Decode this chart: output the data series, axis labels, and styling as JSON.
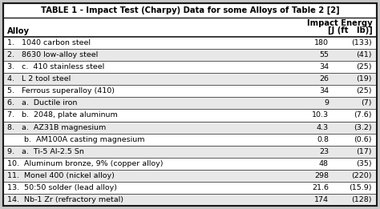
{
  "title": "TABLE 1 - Impact Test (Charpy) Data for some Alloys of Table 2 [2]",
  "col_header_left": "Alloy",
  "col_header_right_line1": "Impact Energy",
  "col_header_right_line2": "[J (ft   lb)]",
  "rows": [
    {
      "label": "1.   1040 carbon steel",
      "j_val": "180",
      "ft_val": "(133)"
    },
    {
      "label": "2.   8630 low-alloy steel",
      "j_val": "55",
      "ft_val": "(41)"
    },
    {
      "label": "3.   c.  410 stainless steel",
      "j_val": "34",
      "ft_val": "(25)"
    },
    {
      "label": "4.   L 2 tool steel",
      "j_val": "26",
      "ft_val": "(19)"
    },
    {
      "label": "5.   Ferrous superalloy (410)",
      "j_val": "34",
      "ft_val": "(25)"
    },
    {
      "label": "6.   a.  Ductile iron",
      "j_val": "9",
      "ft_val": "(7)"
    },
    {
      "label": "7.   b.  2048, plate aluminum",
      "j_val": "10.3",
      "ft_val": "(7.6)"
    },
    {
      "label": "8.   a.  AZ31B magnesium",
      "j_val": "4.3",
      "ft_val": "(3.2)"
    },
    {
      "label": "       b.  AM100A casting magnesium",
      "j_val": "0.8",
      "ft_val": "(0.6)"
    },
    {
      "label": "9.   a.  Ti-5 Al-2.5 Sn",
      "j_val": "23",
      "ft_val": "(17)"
    },
    {
      "label": "10.  Aluminum bronze, 9% (copper alloy)",
      "j_val": "48",
      "ft_val": "(35)"
    },
    {
      "label": "11.  Monel 400 (nickel alloy)",
      "j_val": "298",
      "ft_val": "(220)"
    },
    {
      "label": "13.  50:50 solder (lead alloy)",
      "j_val": "21.6",
      "ft_val": "(15.9)"
    },
    {
      "label": "14.  Nb-1 Zr (refractory metal)",
      "j_val": "174",
      "ft_val": "(128)"
    }
  ],
  "bg_color": "#c8c8c8",
  "table_bg": "#ffffff",
  "border_color": "#1a1a1a",
  "text_color": "#000000",
  "font_size": 6.8,
  "title_font_size": 7.2,
  "header_font_size": 7.2
}
